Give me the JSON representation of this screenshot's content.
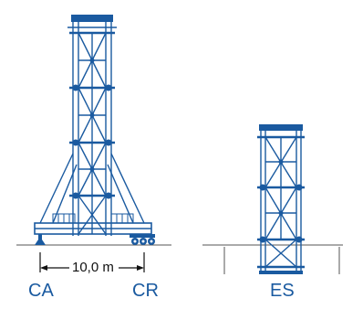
{
  "colors": {
    "structure": "#1a5aa0",
    "ground": "#555555",
    "dimension": "#111111"
  },
  "labels": {
    "ca": "CA",
    "cr": "CR",
    "es": "ES",
    "dimension": "10,0 m"
  }
}
